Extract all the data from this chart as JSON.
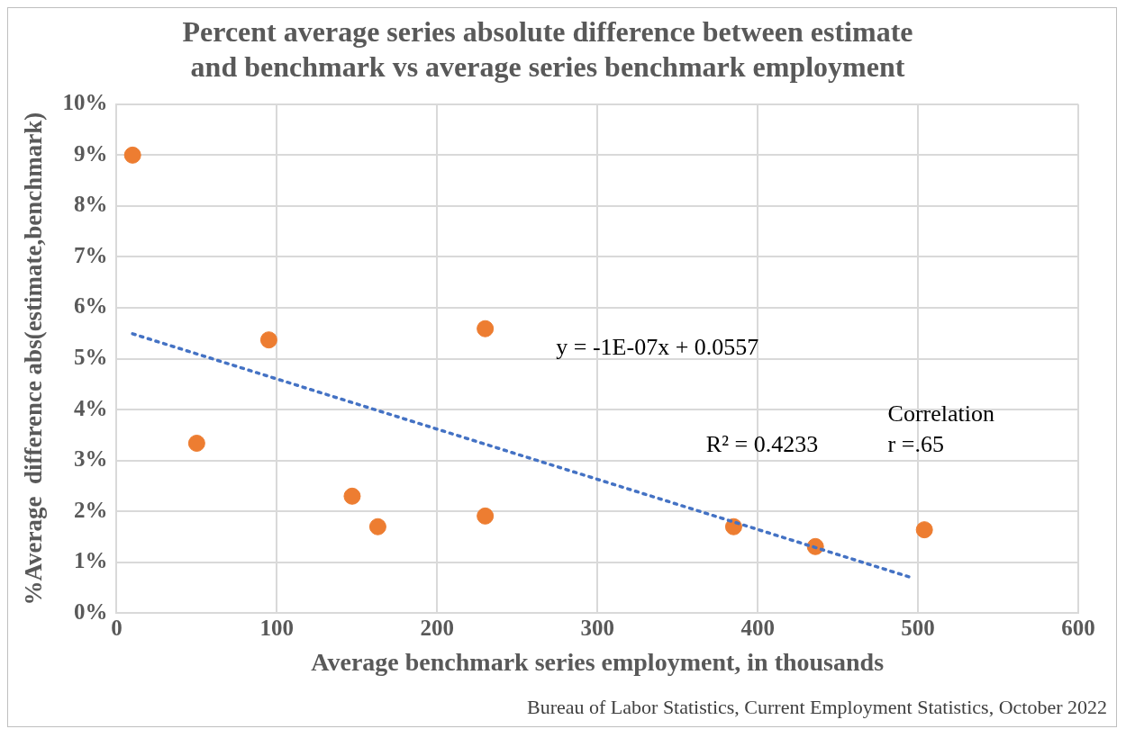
{
  "chart_data": {
    "type": "scatter",
    "title": "Percent average series absolute difference between estimate and benchmark vs average series benchmark employment",
    "xlabel": "Average benchmark series employment, in thousands",
    "ylabel": "%Average  difference abs(estimate,benchmark)",
    "series": [
      {
        "type": "scatter",
        "color": "#ed7d31",
        "x": [
          10,
          50,
          95,
          147,
          163,
          230,
          230,
          385,
          436,
          504
        ],
        "values": [
          9.0,
          3.34,
          5.37,
          2.3,
          1.7,
          5.59,
          1.91,
          1.7,
          1.31,
          1.64
        ]
      },
      {
        "type": "line",
        "color": "#4472c4",
        "line_style": "dotted",
        "marker": "none",
        "x": [
          10,
          496
        ],
        "values": [
          5.49,
          0.7
        ]
      }
    ],
    "xlim": [
      0,
      600
    ],
    "xticks": [
      0,
      100,
      200,
      300,
      400,
      500,
      600
    ],
    "ylim": [
      0,
      10
    ],
    "yticks": [
      {
        "value": 0,
        "label": "0%"
      },
      {
        "value": 1,
        "label": "1%"
      },
      {
        "value": 2,
        "label": "2%"
      },
      {
        "value": 3,
        "label": "3%"
      },
      {
        "value": 4,
        "label": "4%"
      },
      {
        "value": 5,
        "label": "5%"
      },
      {
        "value": 6,
        "label": "6%"
      },
      {
        "value": 7,
        "label": "7%"
      },
      {
        "value": 8,
        "label": "8%"
      },
      {
        "value": 9,
        "label": "9%"
      },
      {
        "value": 10,
        "label": "10%"
      }
    ],
    "grid": true,
    "marker": "circle",
    "annotations": [
      "y = -1E-07x + 0.0557",
      "R² = 0.4233",
      "Correlation",
      "r =.65",
      "Bureau of Labor Statistics, Current Employment Statistics, October 2022"
    ]
  }
}
